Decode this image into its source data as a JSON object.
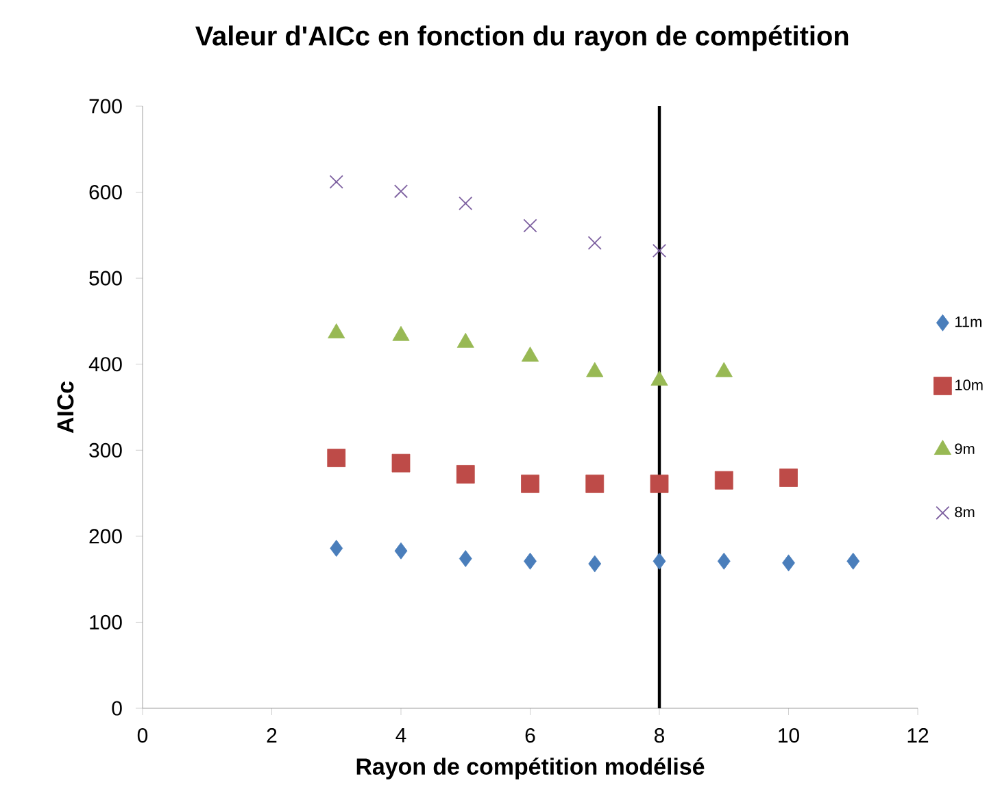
{
  "chart_data": {
    "type": "scatter",
    "title": "Valeur d'AICc en fonction du rayon de compétition",
    "xlabel": "Rayon de compétition modélisé",
    "ylabel": "AICc",
    "xlim": [
      0,
      12
    ],
    "xticks": [
      0,
      2,
      4,
      6,
      8,
      10,
      12
    ],
    "ylim": [
      0,
      700
    ],
    "yticks": [
      0,
      100,
      200,
      300,
      400,
      500,
      600,
      700
    ],
    "grid": false,
    "legend": "right",
    "ref_lines": [
      {
        "axis": "x",
        "value": 8,
        "color": "#000000"
      }
    ],
    "series": [
      {
        "name": "11m",
        "color": "#4a7ebb",
        "marker": "diamond",
        "x": [
          3,
          4,
          5,
          6,
          7,
          8,
          9,
          10,
          11
        ],
        "values": [
          186,
          183,
          174,
          171,
          168,
          171,
          171,
          169,
          171
        ]
      },
      {
        "name": "10m",
        "color": "#be4b48",
        "marker": "square",
        "x": [
          3,
          4,
          5,
          6,
          7,
          8,
          9,
          10
        ],
        "values": [
          291,
          285,
          272,
          261,
          261,
          261,
          265,
          268
        ]
      },
      {
        "name": "9m",
        "color": "#98b954",
        "marker": "triangle",
        "x": [
          3,
          4,
          5,
          6,
          7,
          8,
          9
        ],
        "values": [
          436,
          433,
          425,
          409,
          391,
          381,
          391
        ]
      },
      {
        "name": "8m",
        "color": "#7d60a0",
        "marker": "cross",
        "x": [
          3,
          4,
          5,
          6,
          7,
          8
        ],
        "values": [
          612,
          601,
          587,
          561,
          541,
          532
        ]
      }
    ]
  }
}
